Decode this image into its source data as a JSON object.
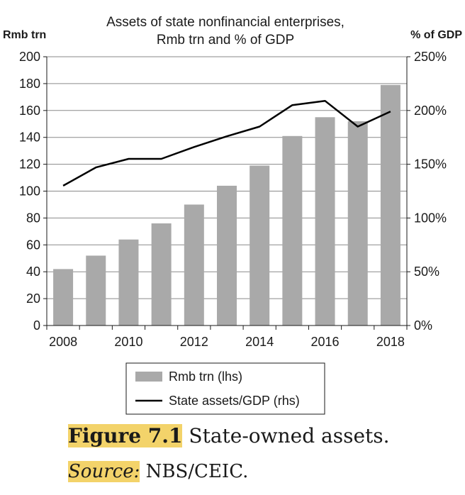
{
  "chart_data": {
    "type": "bar",
    "title": "Assets of state nonfinancial enterprises,",
    "subtitle": "Rmb trn and % of GDP",
    "ylabel": "Rmb trn",
    "y2label": "% of GDP",
    "ylim": [
      0,
      200
    ],
    "y2lim": [
      0,
      250
    ],
    "y_ticks": [
      "0",
      "20",
      "40",
      "60",
      "80",
      "100",
      "120",
      "140",
      "160",
      "180",
      "200"
    ],
    "y2_ticks": [
      "0%",
      "50%",
      "100%",
      "150%",
      "200%",
      "250%"
    ],
    "categories": [
      "2008",
      "2009",
      "2010",
      "2011",
      "2012",
      "2013",
      "2014",
      "2015",
      "2016",
      "2017",
      "2018"
    ],
    "x_tick_labels": [
      "2008",
      "2010",
      "2012",
      "2014",
      "2016",
      "2018"
    ],
    "grid": true,
    "legend_position": "bottom-center",
    "series": [
      {
        "name": "Rmb trn (lhs)",
        "type": "bar",
        "axis": "left",
        "color": "#a9a9a9",
        "values": [
          42,
          52,
          64,
          76,
          90,
          104,
          119,
          141,
          155,
          152,
          179
        ]
      },
      {
        "name": "State assets/GDP (rhs)",
        "type": "line",
        "axis": "right",
        "color": "#000000",
        "values": [
          130,
          147,
          155,
          155,
          166,
          176,
          185,
          205,
          209,
          185,
          199
        ]
      }
    ]
  },
  "caption": {
    "figure_label": "Figure 7.1",
    "figure_text": " State-owned assets.",
    "source_label": "Source:",
    "source_text": " NBS/CEIC."
  }
}
